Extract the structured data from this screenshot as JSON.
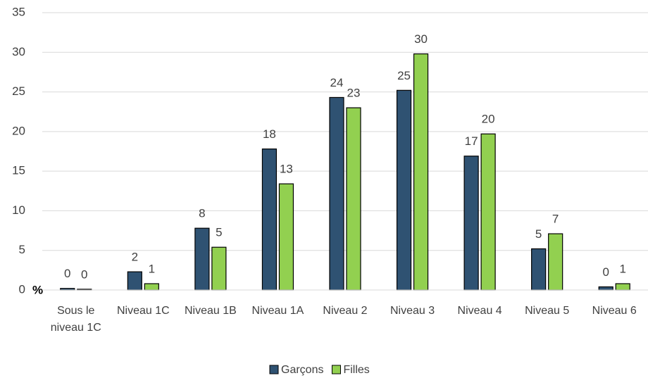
{
  "chart_data": {
    "type": "bar",
    "y_label": "%",
    "categories": [
      "Sous le niveau 1C",
      "Niveau 1C",
      "Niveau 1B",
      "Niveau 1A",
      "Niveau 2",
      "Niveau 3",
      "Niveau 4",
      "Niveau 5",
      "Niveau 6"
    ],
    "series": [
      {
        "name": "Garçons",
        "color": "#2f5272",
        "values": [
          0.2,
          2.3,
          7.8,
          17.8,
          24.3,
          25.2,
          16.9,
          5.2,
          0.4
        ],
        "value_labels": [
          "0",
          "2",
          "8",
          "18",
          "24",
          "25",
          "17",
          "5",
          "0"
        ]
      },
      {
        "name": "Filles",
        "color": "#92d050",
        "values": [
          0.1,
          0.8,
          5.4,
          13.4,
          23.0,
          29.8,
          19.7,
          7.1,
          0.8
        ],
        "value_labels": [
          "0",
          "1",
          "5",
          "13",
          "23",
          "30",
          "20",
          "7",
          "1"
        ]
      }
    ],
    "ylim": [
      0,
      35
    ],
    "yticks": [
      0,
      5,
      10,
      15,
      20,
      25,
      30,
      35
    ],
    "grid": true,
    "legend": "bottom"
  }
}
